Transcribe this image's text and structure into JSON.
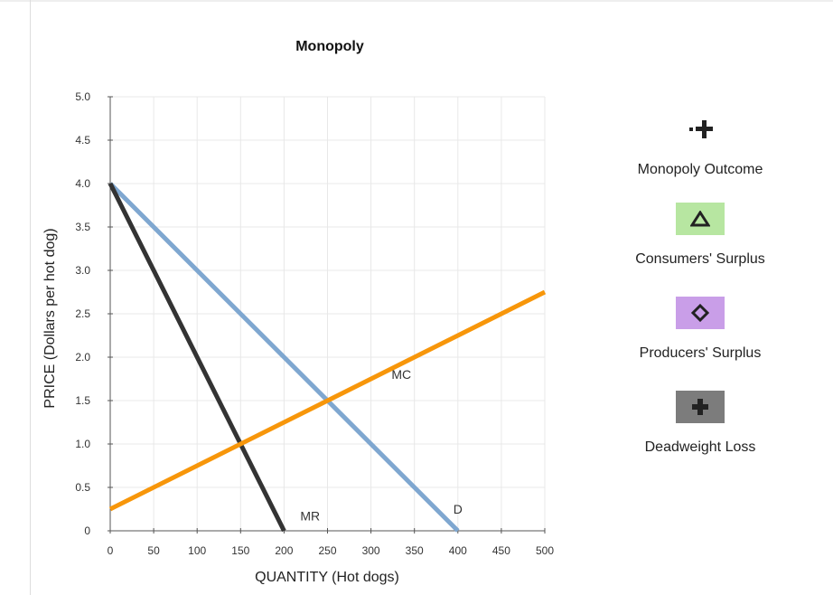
{
  "chart_data": {
    "type": "line",
    "title": "Monopoly",
    "xlabel": "QUANTITY (Hot dogs)",
    "ylabel": "PRICE (Dollars per hot dog)",
    "xlim": [
      0,
      500
    ],
    "ylim": [
      0,
      5.0
    ],
    "x_ticks": [
      "0",
      "50",
      "100",
      "150",
      "200",
      "250",
      "300",
      "350",
      "400",
      "450",
      "500"
    ],
    "y_ticks": [
      "0",
      "0.5",
      "1.0",
      "1.5",
      "2.0",
      "2.5",
      "3.0",
      "3.5",
      "4.0",
      "4.5",
      "5.0"
    ],
    "grid": true,
    "series": [
      {
        "name": "MR",
        "color": "#333333",
        "points": [
          [
            0,
            4.0
          ],
          [
            200,
            0
          ]
        ]
      },
      {
        "name": "D",
        "color": "#7fa7d0",
        "points": [
          [
            0,
            4.0
          ],
          [
            400,
            0
          ]
        ]
      },
      {
        "name": "MC",
        "color": "#f7960a",
        "points": [
          [
            0,
            0.25
          ],
          [
            500,
            2.75
          ]
        ]
      }
    ],
    "line_labels": [
      {
        "text": "MC",
        "x": 335,
        "y": 1.75
      },
      {
        "text": "D",
        "x": 400,
        "y": 0.2
      },
      {
        "text": "MR",
        "x": 230,
        "y": 0.12
      }
    ]
  },
  "legend": {
    "items": [
      {
        "label": "Monopoly Outcome",
        "icon": "plus-dot-icon",
        "swatch_color": ""
      },
      {
        "label": "Consumers' Surplus",
        "icon": "triangle-icon",
        "swatch_color": "#b7e6a1"
      },
      {
        "label": "Producers' Surplus",
        "icon": "diamond-icon",
        "swatch_color": "#c99ee8"
      },
      {
        "label": "Deadweight Loss",
        "icon": "plus-icon",
        "swatch_color": "#7c7c7c"
      }
    ]
  }
}
